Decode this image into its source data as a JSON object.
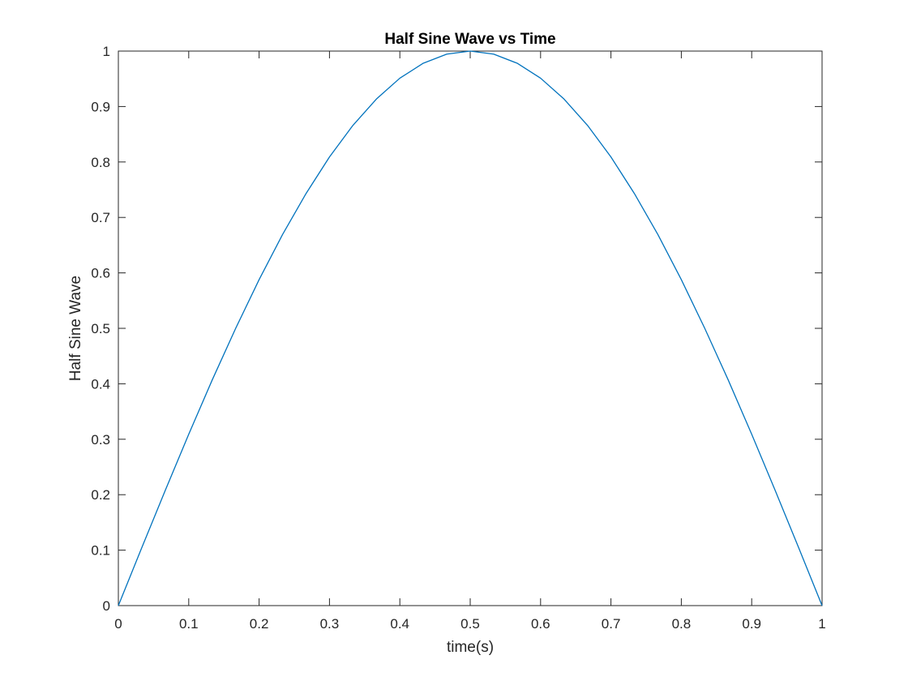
{
  "chart_data": {
    "type": "line",
    "title": "Half Sine Wave vs Time",
    "xlabel": "time(s)",
    "ylabel": "Half Sine Wave",
    "xlim": [
      0,
      1
    ],
    "ylim": [
      0,
      1
    ],
    "grid": false,
    "box": true,
    "xticks": [
      0,
      0.1,
      0.2,
      0.3,
      0.4,
      0.5,
      0.6,
      0.7,
      0.8,
      0.9,
      1
    ],
    "xtick_labels": [
      "0",
      "0.1",
      "0.2",
      "0.3",
      "0.4",
      "0.5",
      "0.6",
      "0.7",
      "0.8",
      "0.9",
      "1"
    ],
    "yticks": [
      0,
      0.1,
      0.2,
      0.3,
      0.4,
      0.5,
      0.6,
      0.7,
      0.8,
      0.9,
      1
    ],
    "ytick_labels": [
      "0",
      "0.1",
      "0.2",
      "0.3",
      "0.4",
      "0.5",
      "0.6",
      "0.7",
      "0.8",
      "0.9",
      "1"
    ],
    "series": [
      {
        "color": "#0072BD",
        "x": [
          0,
          0.0333,
          0.0667,
          0.1,
          0.1333,
          0.1667,
          0.2,
          0.2333,
          0.2667,
          0.3,
          0.3333,
          0.3667,
          0.4,
          0.4333,
          0.4667,
          0.5,
          0.5333,
          0.5667,
          0.6,
          0.6333,
          0.6667,
          0.7,
          0.7333,
          0.7667,
          0.8,
          0.8333,
          0.8667,
          0.9,
          0.9333,
          0.9667,
          1
        ],
        "y": [
          0,
          0.1045,
          0.2079,
          0.309,
          0.4067,
          0.5,
          0.5878,
          0.6691,
          0.7431,
          0.809,
          0.866,
          0.9135,
          0.9511,
          0.9781,
          0.9945,
          1,
          0.9945,
          0.9781,
          0.9511,
          0.9135,
          0.866,
          0.809,
          0.7431,
          0.6691,
          0.5878,
          0.5,
          0.4067,
          0.309,
          0.2079,
          0.1045,
          0
        ]
      }
    ]
  },
  "colors": {
    "axes": "#262626",
    "line": "#0072BD",
    "background": "#ffffff"
  }
}
